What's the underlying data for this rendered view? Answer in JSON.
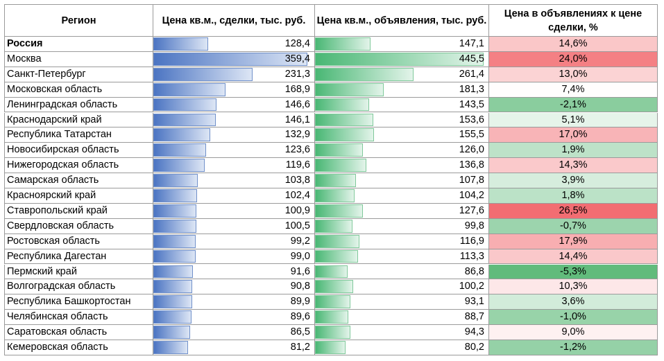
{
  "chart_data": {
    "type": "table",
    "columns": [
      "Регион",
      "Цена кв.м., сделки, тыс. руб.",
      "Цена кв.м., объявления, тыс. руб.",
      "Цена в объявлениях к цене сделки, %"
    ],
    "rows": [
      {
        "region": "Россия",
        "deal": "128,4",
        "deal_value": 128.4,
        "ad": "147,1",
        "ad_value": 147.1,
        "ratio": "14,6%",
        "ratio_value": 14.6,
        "bold": true
      },
      {
        "region": "Москва",
        "deal": "359,4",
        "deal_value": 359.4,
        "ad": "445,5",
        "ad_value": 445.5,
        "ratio": "24,0%",
        "ratio_value": 24.0
      },
      {
        "region": "Санкт-Петербург",
        "deal": "231,3",
        "deal_value": 231.3,
        "ad": "261,4",
        "ad_value": 261.4,
        "ratio": "13,0%",
        "ratio_value": 13.0
      },
      {
        "region": "Московская область",
        "deal": "168,9",
        "deal_value": 168.9,
        "ad": "181,3",
        "ad_value": 181.3,
        "ratio": "7,4%",
        "ratio_value": 7.4
      },
      {
        "region": "Ленинградская область",
        "deal": "146,6",
        "deal_value": 146.6,
        "ad": "143,5",
        "ad_value": 143.5,
        "ratio": "-2,1%",
        "ratio_value": -2.1
      },
      {
        "region": "Краснодарский край",
        "deal": "146,1",
        "deal_value": 146.1,
        "ad": "153,6",
        "ad_value": 153.6,
        "ratio": "5,1%",
        "ratio_value": 5.1
      },
      {
        "region": "Республика Татарстан",
        "deal": "132,9",
        "deal_value": 132.9,
        "ad": "155,5",
        "ad_value": 155.5,
        "ratio": "17,0%",
        "ratio_value": 17.0
      },
      {
        "region": "Новосибирская область",
        "deal": "123,6",
        "deal_value": 123.6,
        "ad": "126,0",
        "ad_value": 126.0,
        "ratio": "1,9%",
        "ratio_value": 1.9
      },
      {
        "region": "Нижегородская область",
        "deal": "119,6",
        "deal_value": 119.6,
        "ad": "136,8",
        "ad_value": 136.8,
        "ratio": "14,3%",
        "ratio_value": 14.3
      },
      {
        "region": "Самарская область",
        "deal": "103,8",
        "deal_value": 103.8,
        "ad": "107,8",
        "ad_value": 107.8,
        "ratio": "3,9%",
        "ratio_value": 3.9
      },
      {
        "region": "Красноярский край",
        "deal": "102,4",
        "deal_value": 102.4,
        "ad": "104,2",
        "ad_value": 104.2,
        "ratio": "1,8%",
        "ratio_value": 1.8
      },
      {
        "region": "Ставропольский край",
        "deal": "100,9",
        "deal_value": 100.9,
        "ad": "127,6",
        "ad_value": 127.6,
        "ratio": "26,5%",
        "ratio_value": 26.5
      },
      {
        "region": "Свердловская область",
        "deal": "100,5",
        "deal_value": 100.5,
        "ad": "99,8",
        "ad_value": 99.8,
        "ratio": "-0,7%",
        "ratio_value": -0.7
      },
      {
        "region": "Ростовская область",
        "deal": "99,2",
        "deal_value": 99.2,
        "ad": "116,9",
        "ad_value": 116.9,
        "ratio": "17,9%",
        "ratio_value": 17.9
      },
      {
        "region": "Республика Дагестан",
        "deal": "99,0",
        "deal_value": 99.0,
        "ad": "113,3",
        "ad_value": 113.3,
        "ratio": "14,4%",
        "ratio_value": 14.4
      },
      {
        "region": "Пермский край",
        "deal": "91,6",
        "deal_value": 91.6,
        "ad": "86,8",
        "ad_value": 86.8,
        "ratio": "-5,3%",
        "ratio_value": -5.3
      },
      {
        "region": "Волгоградская область",
        "deal": "90,8",
        "deal_value": 90.8,
        "ad": "100,2",
        "ad_value": 100.2,
        "ratio": "10,3%",
        "ratio_value": 10.3
      },
      {
        "region": "Республика Башкортостан",
        "deal": "89,9",
        "deal_value": 89.9,
        "ad": "93,1",
        "ad_value": 93.1,
        "ratio": "3,6%",
        "ratio_value": 3.6
      },
      {
        "region": "Челябинская область",
        "deal": "89,6",
        "deal_value": 89.6,
        "ad": "88,7",
        "ad_value": 88.7,
        "ratio": "-1,0%",
        "ratio_value": -1.0
      },
      {
        "region": "Саратовская область",
        "deal": "86,5",
        "deal_value": 86.5,
        "ad": "94,3",
        "ad_value": 94.3,
        "ratio": "9,0%",
        "ratio_value": 9.0
      },
      {
        "region": "Кемеровская область",
        "deal": "81,2",
        "deal_value": 81.2,
        "ad": "80,2",
        "ad_value": 80.2,
        "ratio": "-1,2%",
        "ratio_value": -1.2
      }
    ]
  },
  "colors": {
    "deal_bar": "#4b74c2",
    "ad_bar": "#49b774",
    "ratio_high": "#f26d72",
    "ratio_low": "#61bb7c",
    "neutral": "#ffffff"
  }
}
